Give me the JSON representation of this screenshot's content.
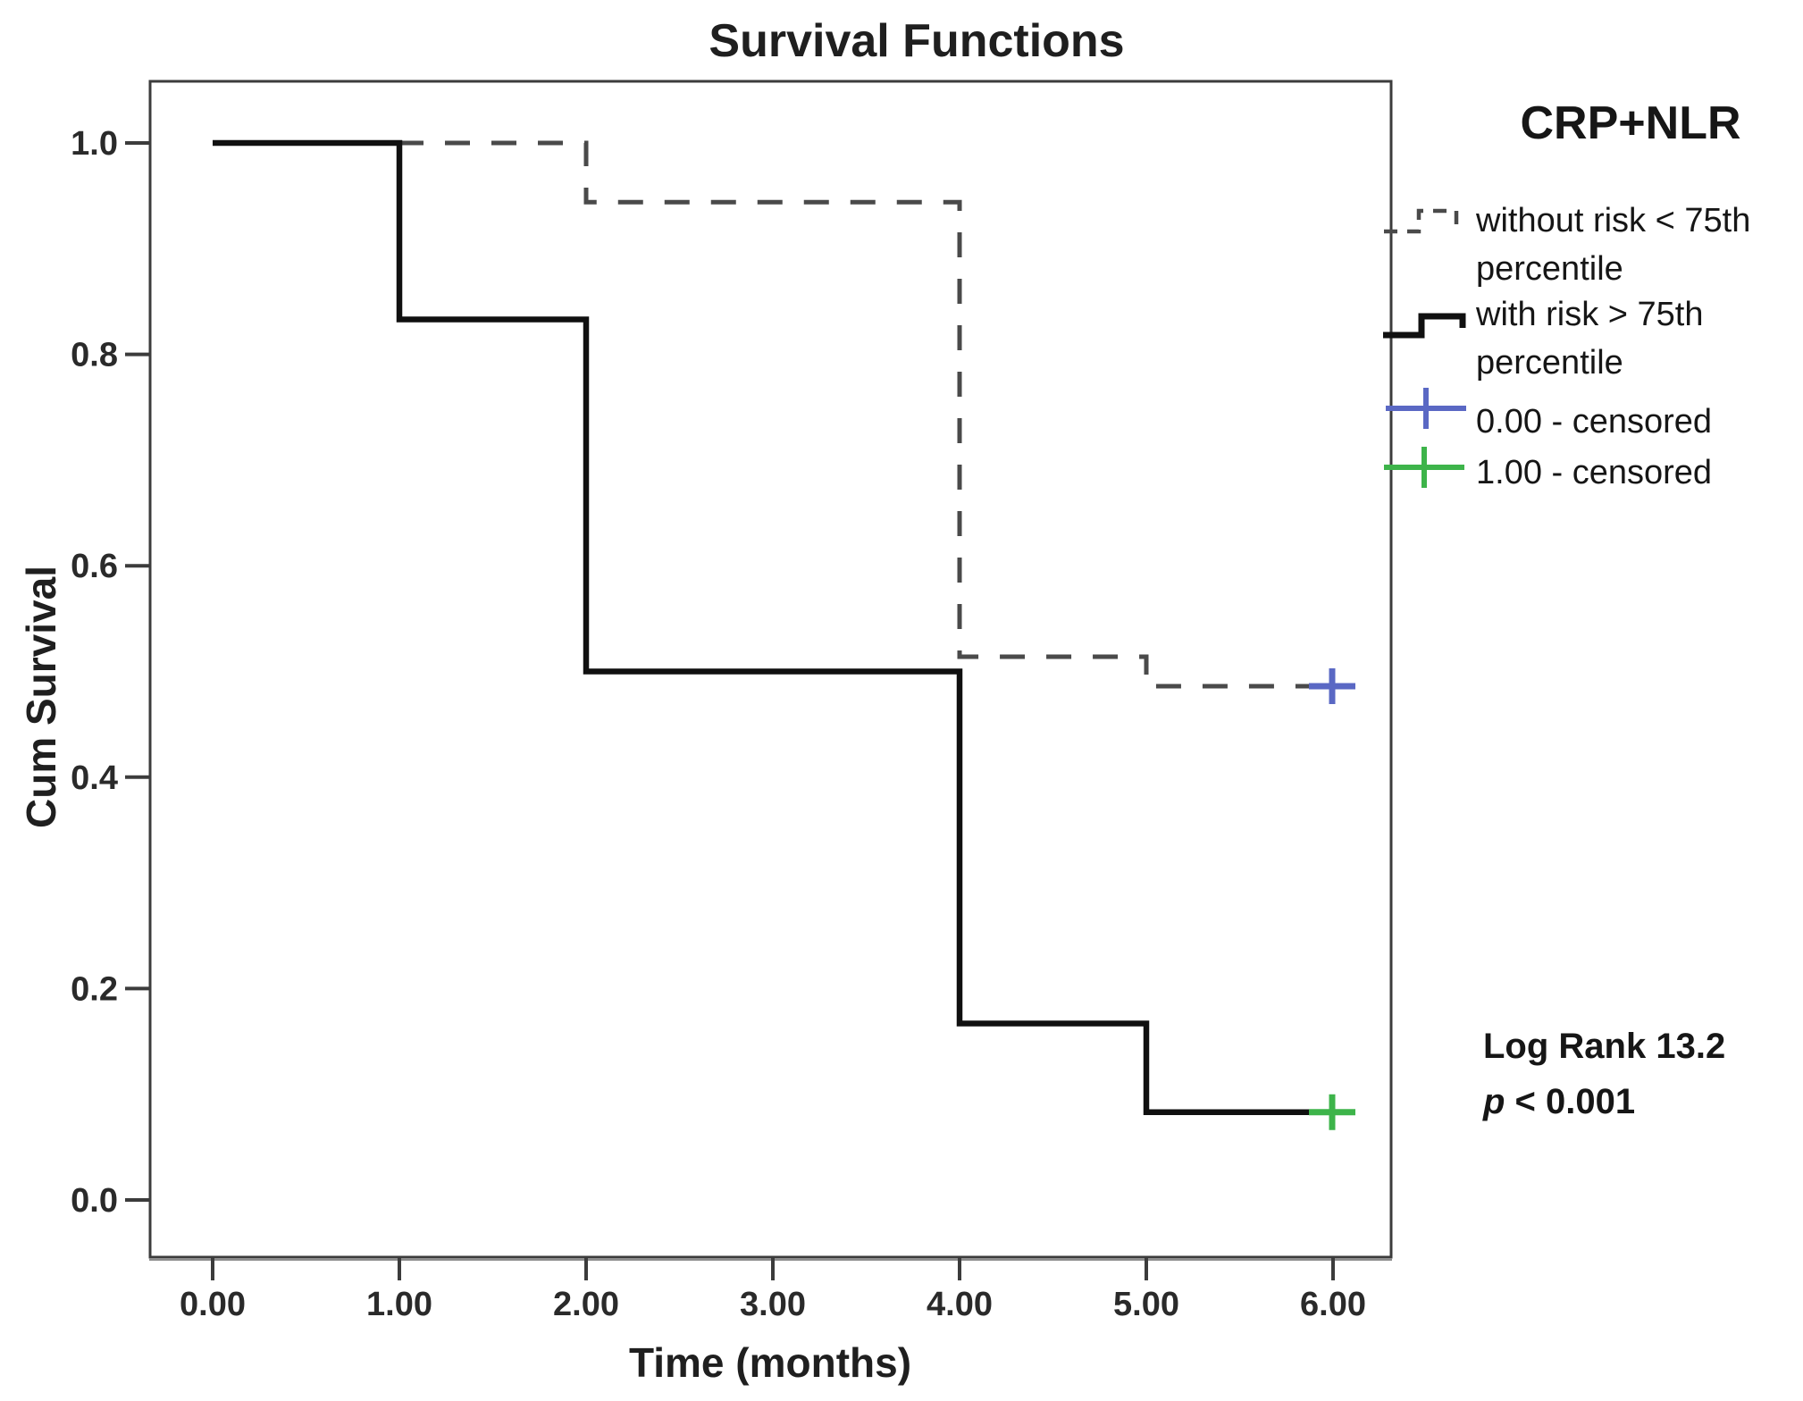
{
  "chart_data": {
    "type": "line",
    "subtype": "kaplan-meier-step-survival",
    "title": "Survival Functions",
    "xlabel": "Time (months)",
    "ylabel": "Cum Survival",
    "xlim": [
      -0.34,
      6.3
    ],
    "ylim": [
      -0.055,
      1.06
    ],
    "grid": false,
    "legend_position": "right",
    "x_ticks": [
      {
        "value": 0,
        "label": "0.00"
      },
      {
        "value": 1,
        "label": "1.00"
      },
      {
        "value": 2,
        "label": "2.00"
      },
      {
        "value": 3,
        "label": "3.00"
      },
      {
        "value": 4,
        "label": "4.00"
      },
      {
        "value": 5,
        "label": "5.00"
      },
      {
        "value": 6,
        "label": "6.00"
      }
    ],
    "y_ticks": [
      {
        "value": 1.0,
        "label": "1.0"
      },
      {
        "value": 0.8,
        "label": "0.8"
      },
      {
        "value": 0.6,
        "label": "0.6"
      },
      {
        "value": 0.4,
        "label": "0.4"
      },
      {
        "value": 0.2,
        "label": "0.2"
      },
      {
        "value": 0.0,
        "label": "0.0"
      }
    ],
    "legend": {
      "title": "CRP+NLR",
      "items": [
        {
          "label": "without risk < 75th percentile",
          "marker": "dashed-step-line",
          "color": "#4a4a4a"
        },
        {
          "label": "with risk > 75th percentile",
          "marker": "solid-step-line",
          "color": "#101010"
        },
        {
          "label": "0.00 - censored",
          "marker": "plus",
          "color": "#5a68c4"
        },
        {
          "label": "1.00 - censored",
          "marker": "plus",
          "color": "#3db44a"
        }
      ]
    },
    "series": [
      {
        "name": "without risk < 75th percentile",
        "group_code": "0.00",
        "line_style": "dashed",
        "color": "#4a4a4a",
        "steps": [
          [
            0,
            1.0
          ],
          [
            2,
            1.0
          ],
          [
            2,
            0.944
          ],
          [
            4,
            0.944
          ],
          [
            4,
            0.514
          ],
          [
            5,
            0.514
          ],
          [
            5,
            0.486
          ],
          [
            6,
            0.486
          ]
        ],
        "censored_points": [
          {
            "x": 6,
            "y": 0.486,
            "color": "#5a68c4"
          }
        ]
      },
      {
        "name": "with risk > 75th percentile",
        "group_code": "1.00",
        "line_style": "solid",
        "color": "#101010",
        "steps": [
          [
            0,
            1.0
          ],
          [
            1,
            1.0
          ],
          [
            1,
            0.833
          ],
          [
            2,
            0.833
          ],
          [
            2,
            0.5
          ],
          [
            4,
            0.5
          ],
          [
            4,
            0.167
          ],
          [
            5,
            0.167
          ],
          [
            5,
            0.083
          ],
          [
            6,
            0.083
          ]
        ],
        "censored_points": [
          {
            "x": 6,
            "y": 0.083,
            "color": "#3db44a"
          }
        ]
      }
    ],
    "annotation": {
      "line1": "Log Rank 13.2",
      "p_symbol": "p",
      "p_rest": " < 0.001"
    }
  }
}
